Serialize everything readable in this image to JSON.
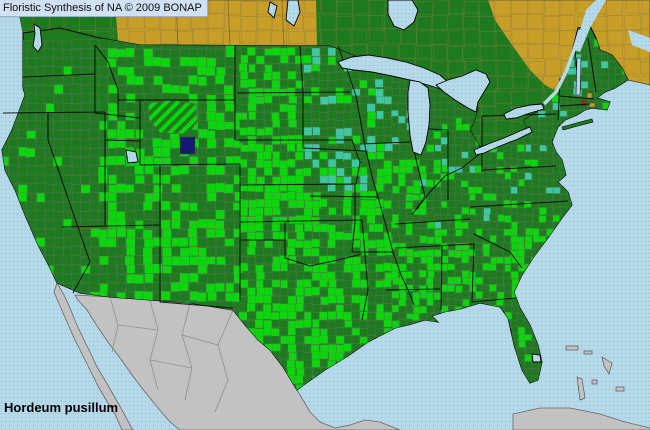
{
  "header": {
    "title": "Floristic Synthesis of NA © 2009 BONAP"
  },
  "map": {
    "species": "Hordeum pusillum",
    "palette": {
      "ocean": "#b6d9ea",
      "ocean_dot": "#90bad3",
      "dark_green_state": "#1e7a1e",
      "bright_green_county": "#0bd60b",
      "teal_county": "#3dc9a0",
      "gold_county": "#c9992a",
      "dark_red_county": "#8a3005",
      "navy_county": "#141a70",
      "canada_gold": "#c79e28",
      "mexico_gray": "#c2c2c2",
      "county_line": "#6e6e6e",
      "state_line": "#000000",
      "lake_blue": "#b6d9ea"
    }
  }
}
